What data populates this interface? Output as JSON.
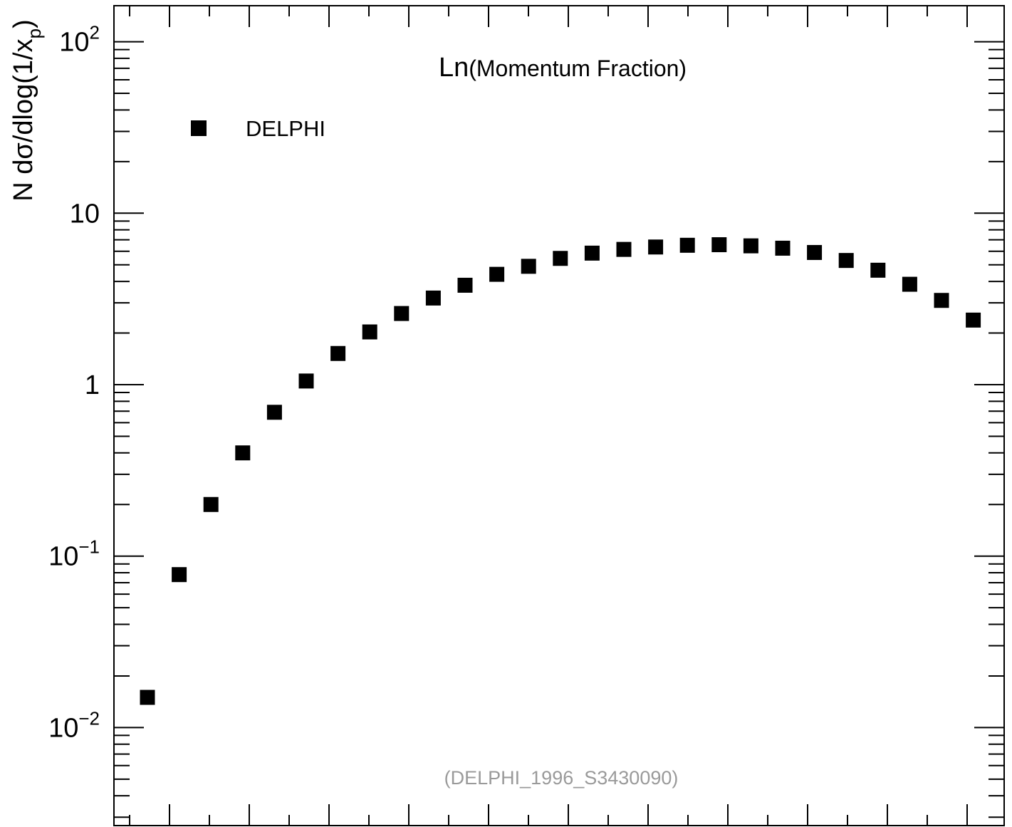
{
  "chart_data": {
    "type": "scatter",
    "title": "Ln(Momentum Fraction)",
    "title_prefix": "Ln",
    "title_rest": "(Momentum Fraction)",
    "ylabel": "N dσ/dlog(1/x",
    "ylabel_sub": "p",
    "ylabel_close": ")",
    "yscale": "log",
    "ylim": [
      0.003,
      180
    ],
    "y_ticks": [
      {
        "value": 0.01,
        "base": "10",
        "exp": "−2"
      },
      {
        "value": 0.1,
        "base": "10",
        "exp": "−1"
      },
      {
        "value": 1,
        "base": "1",
        "exp": ""
      },
      {
        "value": 10,
        "base": "10",
        "exp": ""
      },
      {
        "value": 100,
        "base": "10",
        "exp": "2"
      }
    ],
    "legend": {
      "position": "top-left",
      "label": "DELPHI"
    },
    "annotation": "(DELPHI_1996_S3430090)",
    "grid": false,
    "series": [
      {
        "name": "DELPHI",
        "color": "#000000",
        "marker": "square",
        "values": [
          0.015,
          0.078,
          0.2,
          0.4,
          0.69,
          1.05,
          1.52,
          2.03,
          2.6,
          3.2,
          3.8,
          4.4,
          4.9,
          5.45,
          5.85,
          6.15,
          6.35,
          6.5,
          6.55,
          6.45,
          6.25,
          5.9,
          5.3,
          4.65,
          3.85,
          3.1,
          2.38
        ]
      }
    ]
  }
}
